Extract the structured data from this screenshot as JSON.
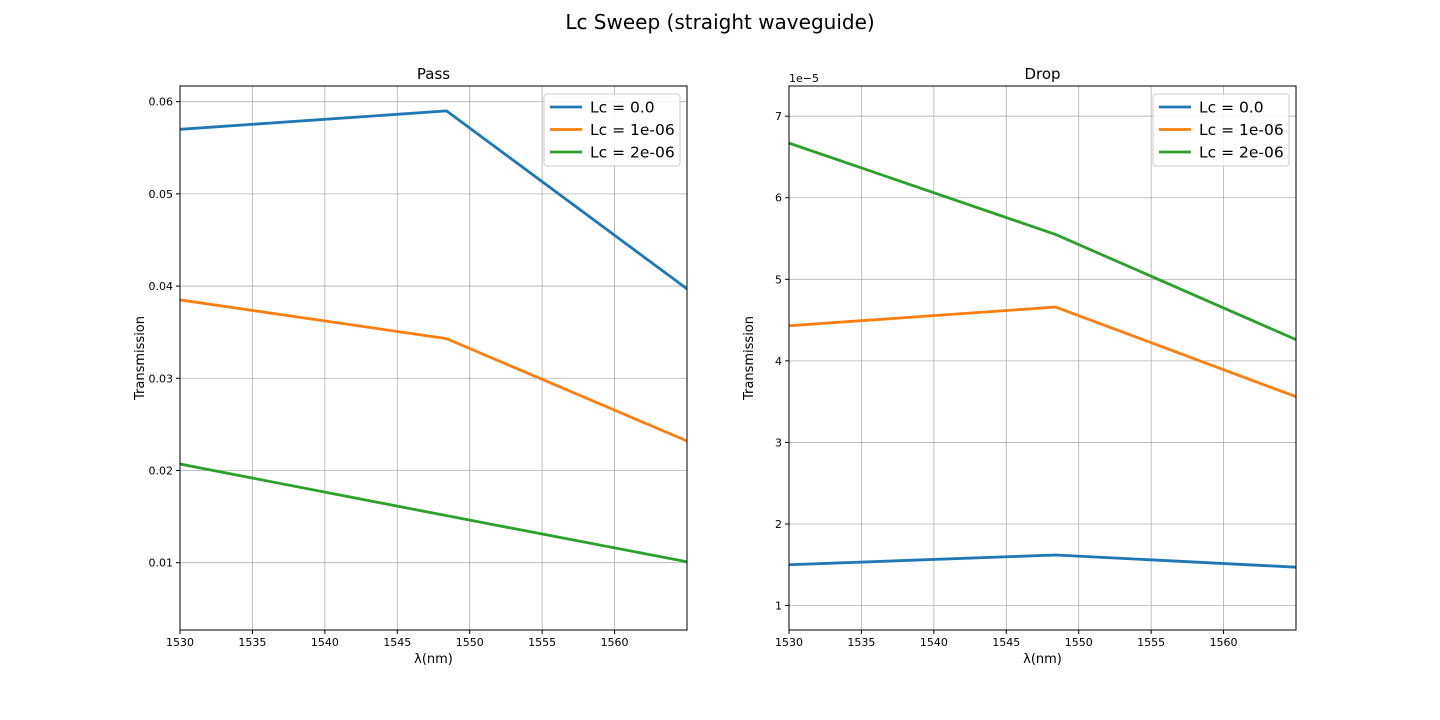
{
  "figure": {
    "title": "Lc Sweep (straight waveguide)"
  },
  "colors": {
    "Lc = 0.0": "#1f77b4",
    "Lc = 1e-06": "#ff7f0e",
    "Lc = 2e-06": "#2ca02c",
    "grid": "#b0b0b0"
  },
  "chart_data": [
    {
      "type": "line",
      "title": "Pass",
      "xlabel": "λ(nm)",
      "ylabel": "Transmission",
      "xlim": [
        1530,
        1565
      ],
      "ylim": [
        0.0027,
        0.0617
      ],
      "xticks": [
        1530,
        1535,
        1540,
        1545,
        1550,
        1555,
        1560
      ],
      "yticks": [
        0.01,
        0.02,
        0.03,
        0.04,
        0.05,
        0.06
      ],
      "ytick_labels": [
        "0.01",
        "0.02",
        "0.03",
        "0.04",
        "0.05",
        "0.06"
      ],
      "offset_label": "",
      "grid": true,
      "legend_position": "upper-right",
      "x": [
        1530,
        1548.4,
        1565
      ],
      "series": [
        {
          "name": "Lc = 0.0",
          "values": [
            0.057,
            0.059,
            0.0397
          ]
        },
        {
          "name": "Lc = 1e-06",
          "values": [
            0.0385,
            0.0343,
            0.0232
          ]
        },
        {
          "name": "Lc = 2e-06",
          "values": [
            0.0207,
            0.0151,
            0.0101
          ]
        }
      ]
    },
    {
      "type": "line",
      "title": "Drop",
      "xlabel": "λ(nm)",
      "ylabel": "Transmission",
      "xlim": [
        1530,
        1565
      ],
      "ylim": [
        7e-06,
        7.37e-05
      ],
      "xticks": [
        1530,
        1535,
        1540,
        1545,
        1550,
        1555,
        1560
      ],
      "yticks": [
        1e-05,
        2e-05,
        3e-05,
        4e-05,
        5e-05,
        6e-05,
        7e-05
      ],
      "ytick_labels": [
        "1",
        "2",
        "3",
        "4",
        "5",
        "6",
        "7"
      ],
      "offset_label": "1e−5",
      "grid": true,
      "legend_position": "upper-right",
      "x": [
        1530,
        1548.4,
        1565
      ],
      "series": [
        {
          "name": "Lc = 0.0",
          "values": [
            1.5e-05,
            1.62e-05,
            1.47e-05
          ]
        },
        {
          "name": "Lc = 1e-06",
          "values": [
            4.43e-05,
            4.66e-05,
            3.56e-05
          ]
        },
        {
          "name": "Lc = 2e-06",
          "values": [
            6.67e-05,
            5.55e-05,
            4.26e-05
          ]
        }
      ]
    }
  ]
}
